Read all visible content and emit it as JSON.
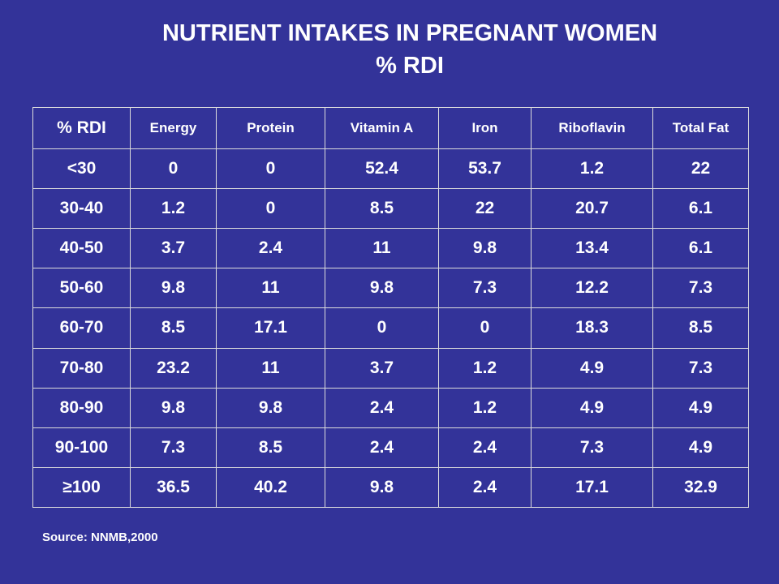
{
  "slide": {
    "title_line1": "NUTRIENT  INTAKES  IN PREGNANT  WOMEN",
    "title_line2": "% RDI",
    "source": "Source: NNMB,2000",
    "colors": {
      "background": "#333399",
      "text": "#ffffff",
      "grid": "#dcdcdc"
    }
  },
  "table": {
    "headers": [
      "% RDI",
      "Energy",
      "Protein",
      "Vitamin A",
      "Iron",
      "Riboflavin",
      "Total Fat"
    ],
    "rows": [
      [
        "<30",
        "0",
        "0",
        "52.4",
        "53.7",
        "1.2",
        "22"
      ],
      [
        "30-40",
        "1.2",
        "0",
        "8.5",
        "22",
        "20.7",
        "6.1"
      ],
      [
        "40-50",
        "3.7",
        "2.4",
        "11",
        "9.8",
        "13.4",
        "6.1"
      ],
      [
        "50-60",
        "9.8",
        "11",
        "9.8",
        "7.3",
        "12.2",
        "7.3"
      ],
      [
        "60-70",
        "8.5",
        "17.1",
        "0",
        "0",
        "18.3",
        "8.5"
      ],
      [
        "70-80",
        "23.2",
        "11",
        "3.7",
        "1.2",
        "4.9",
        "7.3"
      ],
      [
        "80-90",
        "9.8",
        "9.8",
        "2.4",
        "1.2",
        "4.9",
        "4.9"
      ],
      [
        "90-100",
        "7.3",
        "8.5",
        "2.4",
        "2.4",
        "7.3",
        "4.9"
      ],
      [
        "≥100",
        "36.5",
        "40.2",
        "9.8",
        "2.4",
        "17.1",
        "32.9"
      ]
    ]
  }
}
